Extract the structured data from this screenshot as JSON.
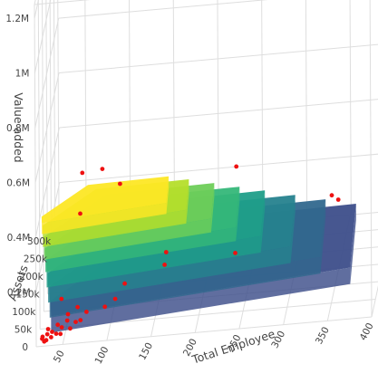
{
  "chart_data": {
    "type": "surface3d",
    "z_axis": {
      "label": "Value added",
      "ticks": [
        "0.2M",
        "0.4M",
        "0.6M",
        "0.8M",
        "1M",
        "1.2M"
      ],
      "range": [
        0,
        1250000
      ]
    },
    "y_axis": {
      "label": "Assets",
      "ticks": [
        "0",
        "50k",
        "100k",
        "150k",
        "200k",
        "250k",
        "300k"
      ],
      "range": [
        0,
        310000
      ]
    },
    "x_axis": {
      "label": "Total Employee",
      "ticks": [
        "50",
        "100",
        "150",
        "200",
        "250",
        "300",
        "350",
        "400"
      ],
      "range": [
        20,
        400
      ]
    },
    "colorscale": "viridis",
    "surface_tiers": [
      {
        "value_added": 60000,
        "color": "#3d4e8a"
      },
      {
        "value_added": 120000,
        "color": "#31688e"
      },
      {
        "value_added": 180000,
        "color": "#26828e"
      },
      {
        "value_added": 240000,
        "color": "#1f9e89"
      },
      {
        "value_added": 290000,
        "color": "#35b779"
      },
      {
        "value_added": 340000,
        "color": "#6ece58"
      },
      {
        "value_added": 390000,
        "color": "#b5de2b"
      },
      {
        "value_added": 430000,
        "color": "#fde725"
      }
    ],
    "scatter": {
      "color": "#ee1111",
      "points": [
        {
          "x": 200,
          "y": 150000,
          "z": 1250000
        },
        {
          "x": 260,
          "y": 230000,
          "z": 1050000
        },
        {
          "x": 60,
          "y": 150000,
          "z": 430000
        },
        {
          "x": 80,
          "y": 180000,
          "z": 400000
        },
        {
          "x": 100,
          "y": 180000,
          "z": 340000
        },
        {
          "x": 60,
          "y": 120000,
          "z": 320000
        },
        {
          "x": 230,
          "y": 200000,
          "z": 340000
        },
        {
          "x": 330,
          "y": 290000,
          "z": 90000
        },
        {
          "x": 340,
          "y": 260000,
          "z": 110000
        },
        {
          "x": 230,
          "y": 180000,
          "z": 50000
        },
        {
          "x": 110,
          "y": 120000,
          "z": 50000
        },
        {
          "x": 40,
          "y": 100000,
          "z": 40000
        },
        {
          "x": 150,
          "y": 200000,
          "z": 50000
        },
        {
          "x": 150,
          "y": 180000,
          "z": 30000
        },
        {
          "x": 60,
          "y": 80000,
          "z": 30000
        },
        {
          "x": 50,
          "y": 70000,
          "z": 20000
        },
        {
          "x": 100,
          "y": 110000,
          "z": 10000
        },
        {
          "x": 70,
          "y": 80000,
          "z": 10000
        },
        {
          "x": 90,
          "y": 90000,
          "z": 10000
        },
        {
          "x": 50,
          "y": 60000,
          "z": 10000
        },
        {
          "x": 40,
          "y": 50000,
          "z": 10000
        },
        {
          "x": 30,
          "y": 40000,
          "z": 10000
        },
        {
          "x": 60,
          "y": 55000,
          "z": 8000
        },
        {
          "x": 35,
          "y": 35000,
          "z": 5000
        },
        {
          "x": 45,
          "y": 45000,
          "z": 6000
        },
        {
          "x": 25,
          "y": 25000,
          "z": 3000
        },
        {
          "x": 30,
          "y": 30000,
          "z": 4000
        },
        {
          "x": 40,
          "y": 30000,
          "z": 3000
        },
        {
          "x": 55,
          "y": 40000,
          "z": 5000
        },
        {
          "x": 25,
          "y": 20000,
          "z": 2000
        },
        {
          "x": 30,
          "y": 15000,
          "z": 2000
        },
        {
          "x": 35,
          "y": 22000,
          "z": 2500
        },
        {
          "x": 28,
          "y": 12000,
          "z": 1500
        },
        {
          "x": 45,
          "y": 28000,
          "z": 3500
        },
        {
          "x": 65,
          "y": 60000,
          "z": 7000
        }
      ]
    }
  }
}
